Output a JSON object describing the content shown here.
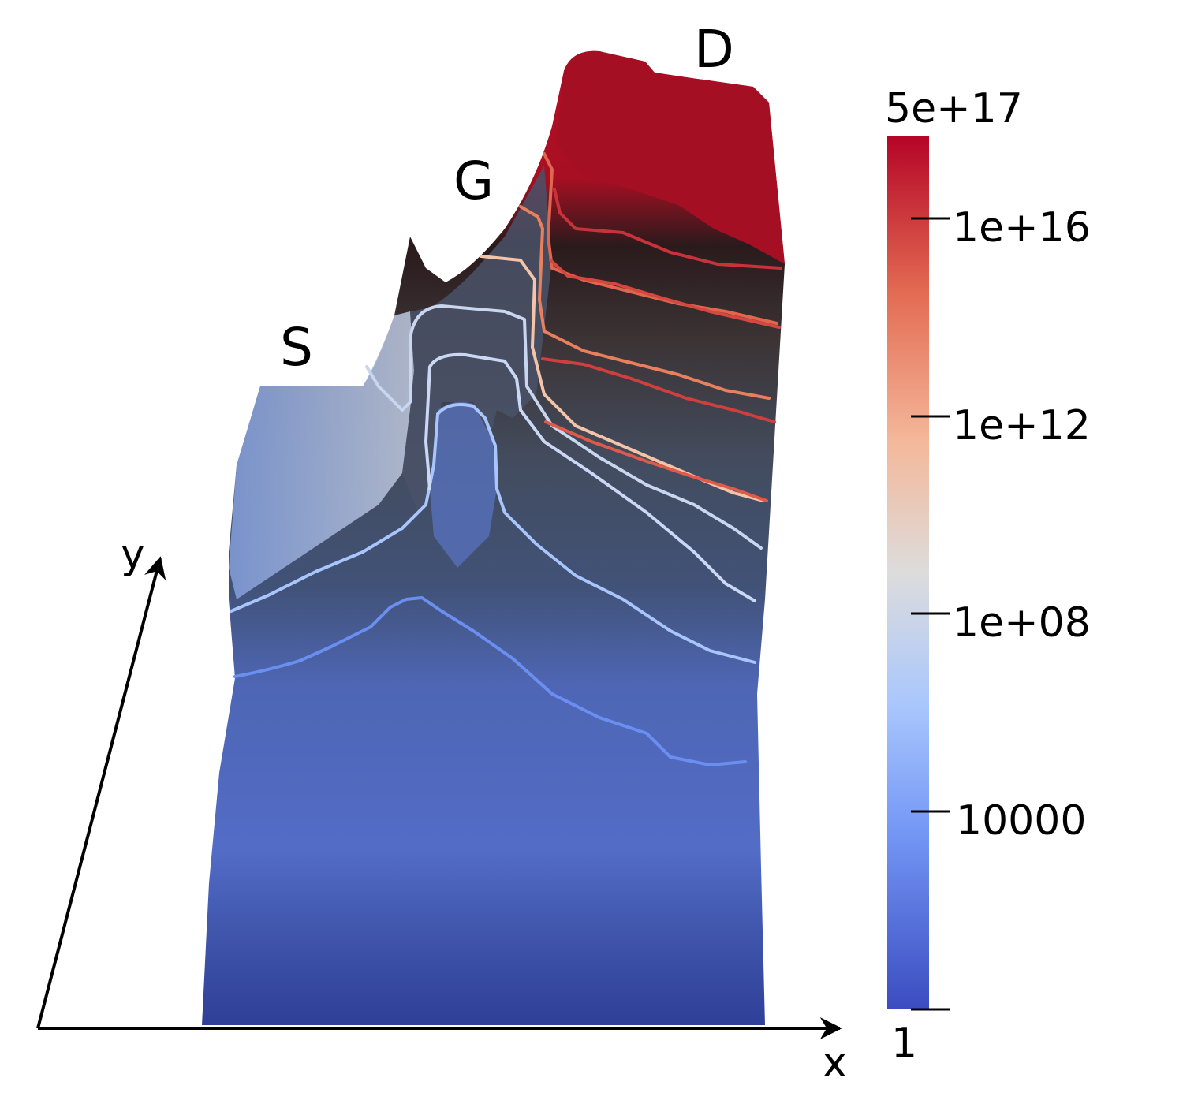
{
  "labels": {
    "source": "S",
    "gate": "G",
    "drain": "D"
  },
  "axes": {
    "x_label": "x",
    "y_label": "y"
  },
  "colorbar": {
    "scale": "log",
    "max_label": "5e+17",
    "min_label": "1",
    "ticks": [
      "1e+16",
      "1e+12",
      "1e+08",
      "10000"
    ],
    "colors": {
      "top": "#b40426",
      "upper": "#e8765c",
      "mid_upper": "#f5c4ac",
      "mid": "#dddcdc",
      "mid_lower": "#aac7fd",
      "lower": "#6f92f3",
      "bottom": "#3b4cc0"
    }
  }
}
